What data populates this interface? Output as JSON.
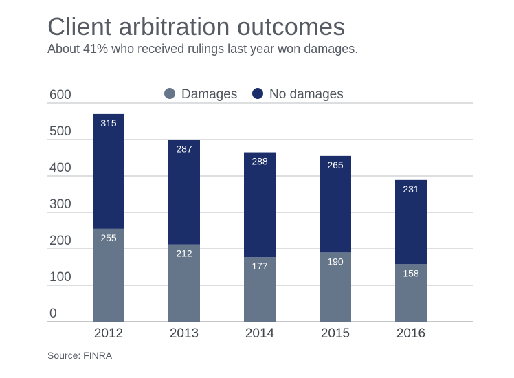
{
  "chart_data": {
    "type": "bar",
    "stacked": true,
    "title": "Client arbitration outcomes",
    "subtitle": "About 41% who received rulings last year won damages.",
    "source": "Source: FINRA",
    "categories": [
      "2012",
      "2013",
      "2014",
      "2015",
      "2016"
    ],
    "series": [
      {
        "name": "Damages",
        "color": "#66768a",
        "values": [
          255,
          212,
          177,
          190,
          158
        ]
      },
      {
        "name": "No damages",
        "color": "#1b2e69",
        "values": [
          315,
          287,
          288,
          265,
          231
        ]
      }
    ],
    "yticks": [
      0,
      100,
      200,
      300,
      400,
      500,
      600
    ],
    "ylim": [
      0,
      600
    ],
    "grid": true,
    "legend": "top-center"
  }
}
